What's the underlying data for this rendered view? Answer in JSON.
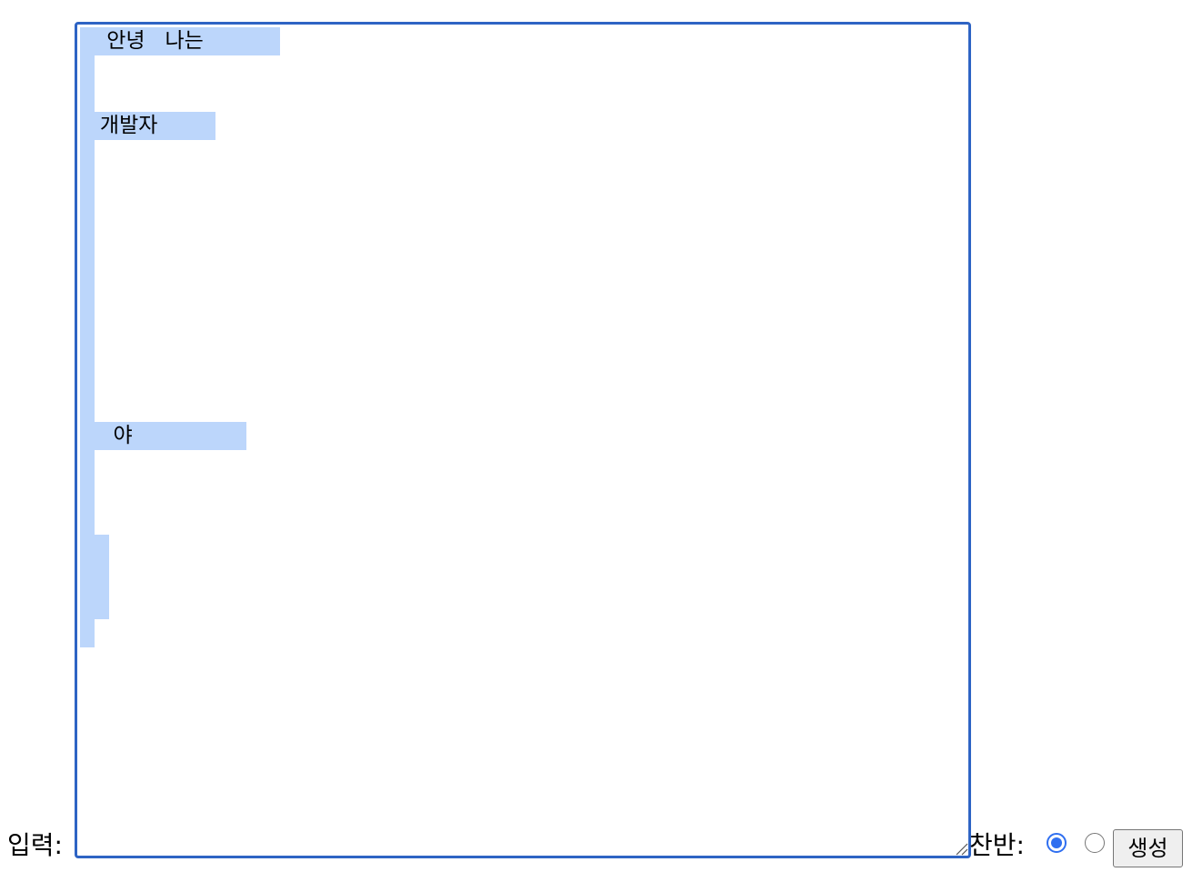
{
  "form": {
    "input_label": "입력:",
    "textarea": {
      "lines": [
        {
          "text": "    안녕   나는    ",
          "indent": ""
        },
        {
          "text": "",
          "indent": " "
        },
        {
          "text": "",
          "indent": " "
        },
        {
          "text": "   개발자   ",
          "indent": " "
        },
        {
          "text": "",
          "indent": " "
        },
        {
          "text": "",
          "indent": " "
        },
        {
          "text": "",
          "indent": " "
        },
        {
          "text": "",
          "indent": " "
        },
        {
          "text": "",
          "indent": " "
        },
        {
          "text": "",
          "indent": " "
        },
        {
          "text": "",
          "indent": " "
        },
        {
          "text": "",
          "indent": " "
        },
        {
          "text": "",
          "indent": " "
        },
        {
          "text": "",
          "indent": " "
        },
        {
          "text": "     야      ",
          "indent": " "
        },
        {
          "text": "",
          "indent": " "
        },
        {
          "text": "",
          "indent": " "
        },
        {
          "text": "",
          "indent": " "
        },
        {
          "text": "",
          "indent": " "
        },
        {
          "text": "",
          "indent": " "
        },
        {
          "text": "",
          "indent": " "
        },
        {
          "text": "",
          "indent": " "
        }
      ],
      "focused": true
    },
    "direction_label": "찬반:",
    "radio_options": [
      {
        "name": "radio-option-1",
        "checked": true
      },
      {
        "name": "radio-option-2",
        "checked": false
      }
    ],
    "submit_label": "생성"
  },
  "colors": {
    "focus_border": "#2e64c4",
    "selection": "#bcd6fb",
    "radio_accent": "#2f6ff0"
  }
}
